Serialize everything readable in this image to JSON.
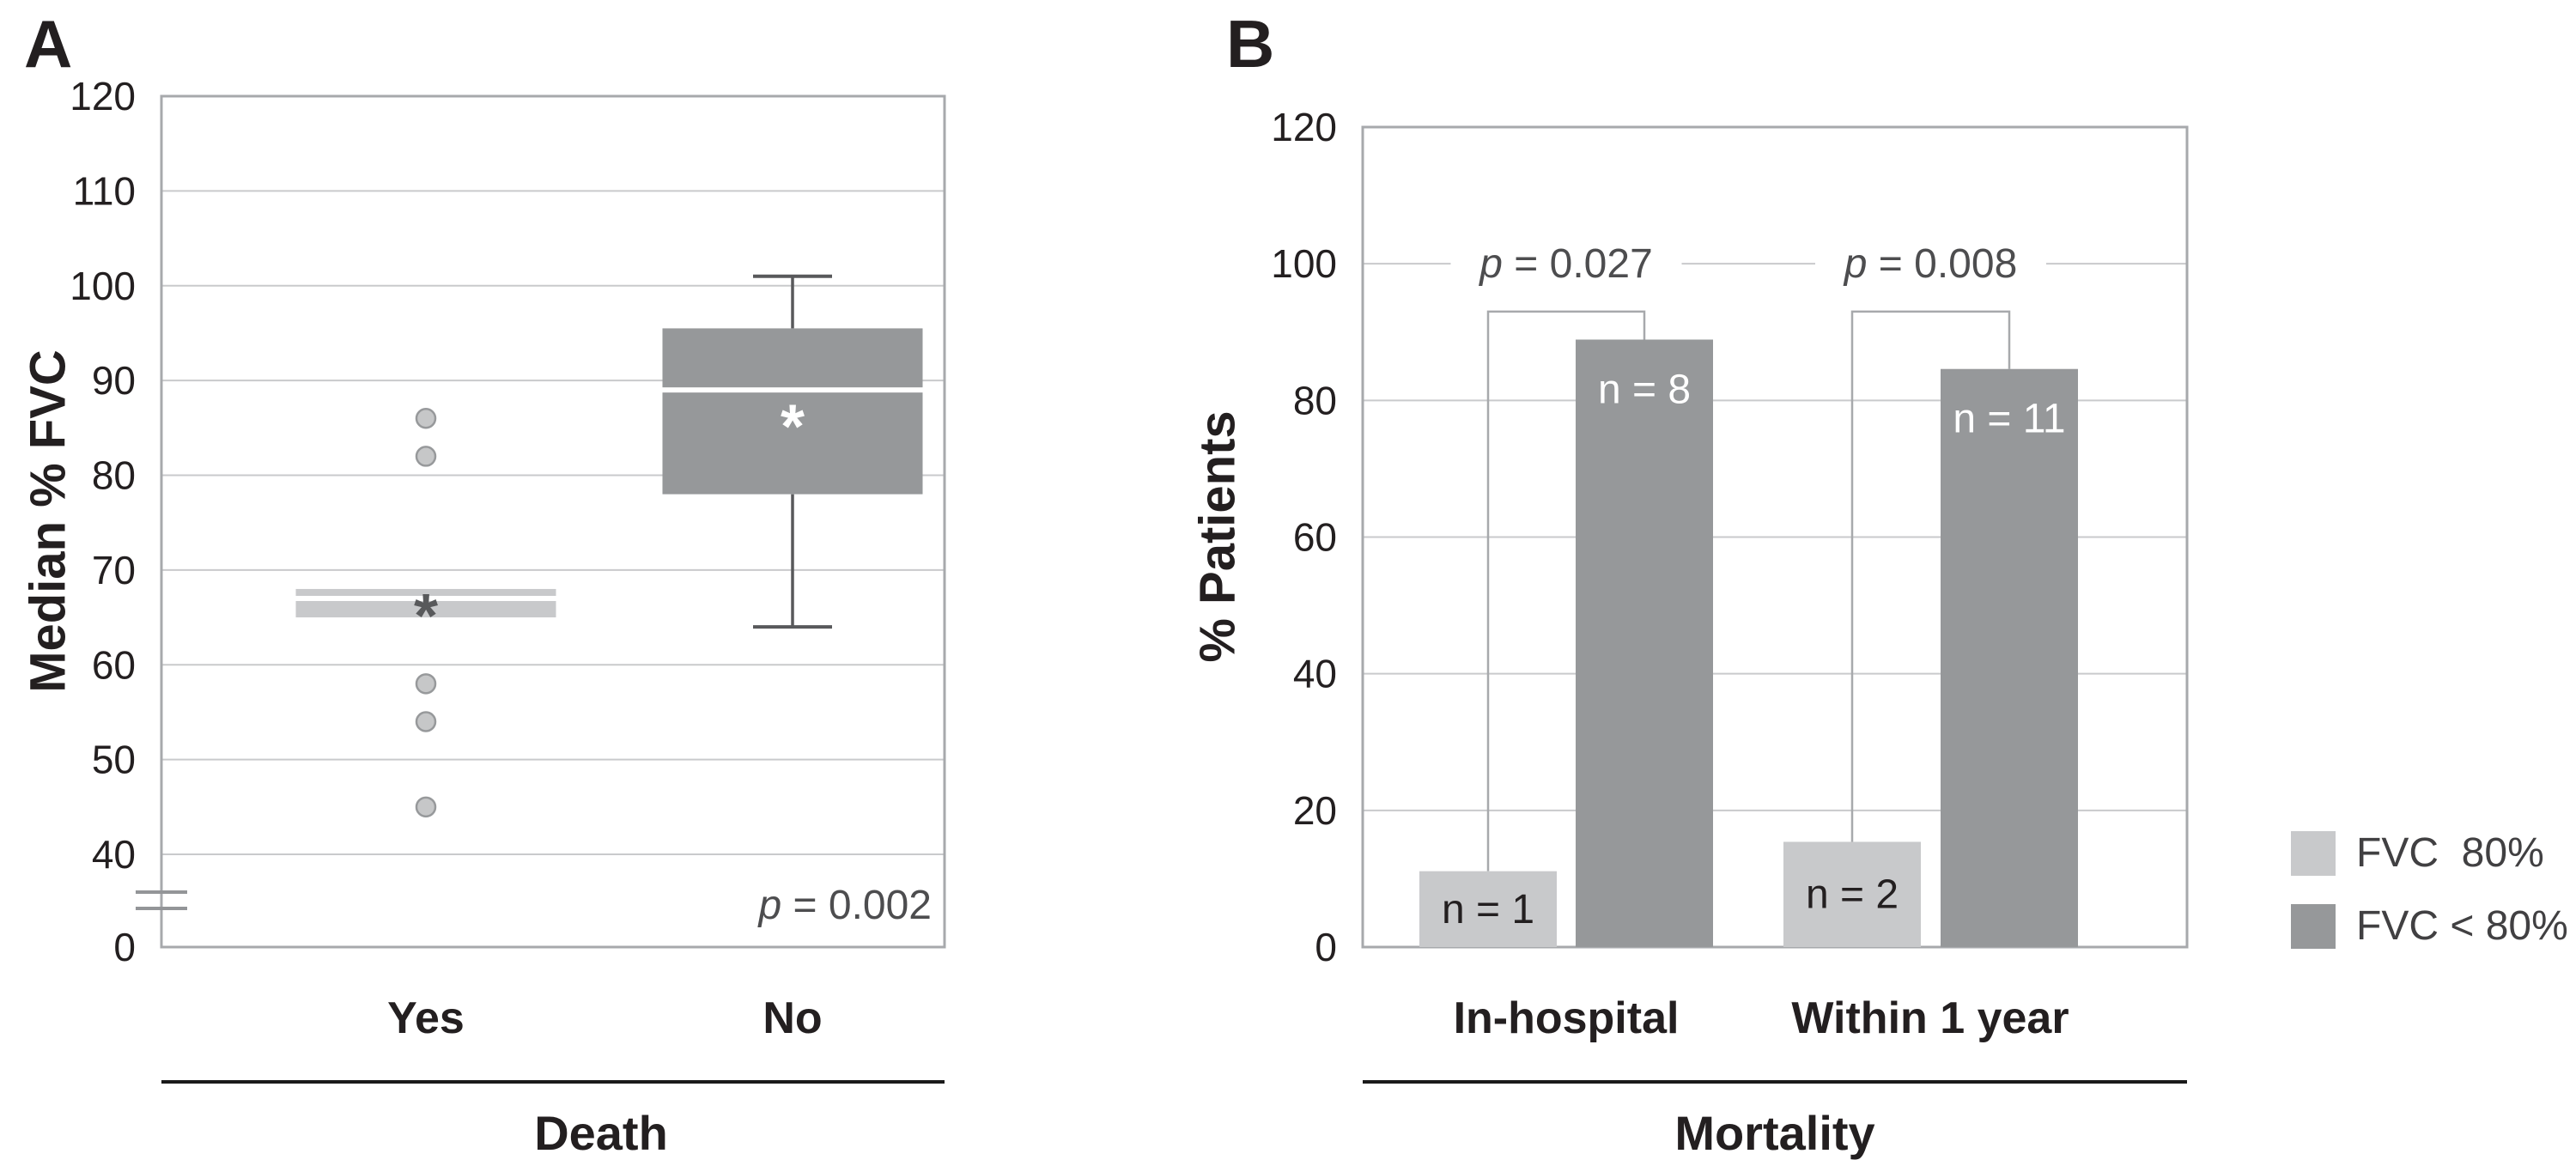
{
  "panels": {
    "a": {
      "label": "A",
      "y_axis_title": "Median % FVC",
      "x_axis_title": "Death",
      "categories": [
        "Yes",
        "No"
      ],
      "annotation": "p = 0.002"
    },
    "b": {
      "label": "B",
      "y_axis_title": "% Patients",
      "x_axis_title": "Mortality",
      "categories": [
        "In-hospital",
        "Within 1 year"
      ]
    }
  },
  "legend": {
    "items": [
      {
        "label": "FVC  80%",
        "color": "#c8c9cb"
      },
      {
        "label": "FVC < 80%",
        "color": "#96989a"
      }
    ]
  },
  "colors": {
    "light_gray": "#c8c9cb",
    "dark_gray": "#96989a",
    "whisker": "#58595b",
    "gridline": "#c9cacc",
    "border": "#a7a9ac",
    "text": "#231f20",
    "p_text": "#4d4d4f",
    "dot_fill": "#c6c7c8",
    "dot_stroke": "#97999b",
    "break_mark": "#939598"
  },
  "chart_data": [
    {
      "type": "boxplot",
      "title": "",
      "xlabel": "Death",
      "ylabel": "Median % FVC",
      "ylim": [
        0,
        120
      ],
      "yticks": [
        120,
        110,
        100,
        90,
        80,
        70,
        60,
        50,
        40,
        0
      ],
      "axis_break_between": [
        0,
        40
      ],
      "grid": true,
      "categories": [
        "Yes",
        "No"
      ],
      "series": [
        {
          "category": "Yes",
          "q1": 65,
          "median": 67,
          "q3": 68,
          "mean": 66,
          "whisker_low": null,
          "whisker_high": null,
          "outliers": [
            86,
            82,
            58,
            54,
            45
          ],
          "fill": "#c8c9cb",
          "median_color": "#ffffff",
          "mean_marker": "*",
          "mean_marker_color": "#58595b"
        },
        {
          "category": "No",
          "q1": 78,
          "median": 89,
          "q3": 95.5,
          "mean": 86,
          "whisker_low": 64,
          "whisker_high": 101,
          "outliers": [],
          "fill": "#96989a",
          "median_color": "#ffffff",
          "mean_marker": "*",
          "mean_marker_color": "#ffffff"
        }
      ],
      "annotation": "p = 0.002"
    },
    {
      "type": "bar",
      "title": "",
      "xlabel": "Mortality",
      "ylabel": "% Patients",
      "ylim": [
        0,
        120
      ],
      "yticks": [
        120,
        100,
        80,
        60,
        40,
        20,
        0
      ],
      "grid": true,
      "legend_position": "right",
      "categories": [
        "In-hospital",
        "Within 1 year"
      ],
      "series": [
        {
          "name": "FVC  80%",
          "values": [
            11.1,
            15.4
          ],
          "bar_labels": [
            "n = 1",
            "n = 2"
          ],
          "fill": "#c8c9cb",
          "label_color": "#231f20"
        },
        {
          "name": "FVC < 80%",
          "values": [
            88.9,
            84.6
          ],
          "bar_labels": [
            "n = 8",
            "n = 11"
          ],
          "fill": "#96989a",
          "label_color": "#ffffff"
        }
      ],
      "comparisons": [
        {
          "category": "In-hospital",
          "p_text": "p = 0.027",
          "bracket_top": 93
        },
        {
          "category": "Within 1 year",
          "p_text": "p = 0.008",
          "bracket_top": 93
        }
      ]
    }
  ]
}
